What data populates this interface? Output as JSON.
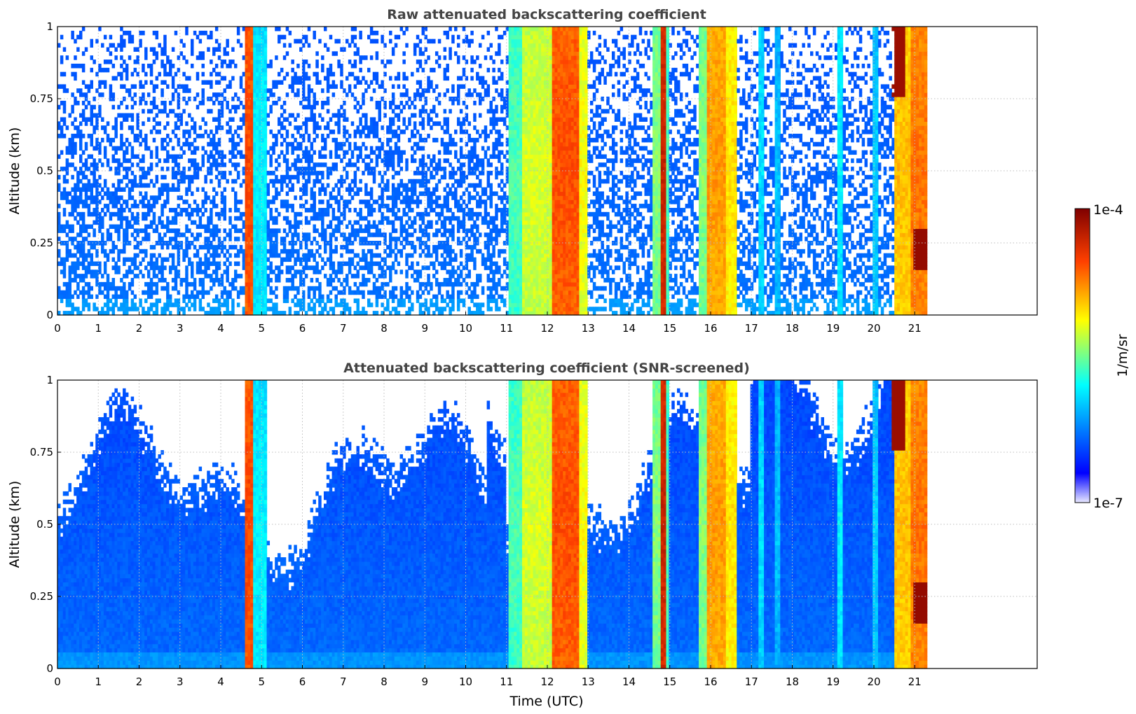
{
  "chart_data": [
    {
      "type": "heatmap",
      "title": "Raw attenuated backscattering coefficient",
      "xlabel": "",
      "ylabel": "Altitude (km)",
      "xlim": [
        0,
        24
      ],
      "ylim": [
        0,
        1
      ],
      "x_ticks": [
        "0",
        "1",
        "2",
        "3",
        "4",
        "5",
        "6",
        "7",
        "8",
        "9",
        "10",
        "11",
        "12",
        "13",
        "14",
        "15",
        "16",
        "17",
        "18",
        "19",
        "20",
        "21"
      ],
      "y_ticks": [
        "0",
        "0.25",
        "0.5",
        "0.75",
        "1"
      ],
      "data_end_time": 21.3,
      "grid": true,
      "screened": false
    },
    {
      "type": "heatmap",
      "title": "Attenuated backscattering coefficient (SNR-screened)",
      "xlabel": "Time (UTC)",
      "ylabel": "Altitude (km)",
      "xlim": [
        0,
        24
      ],
      "ylim": [
        0,
        1
      ],
      "x_ticks": [
        "0",
        "1",
        "2",
        "3",
        "4",
        "5",
        "6",
        "7",
        "8",
        "9",
        "10",
        "11",
        "12",
        "13",
        "14",
        "15",
        "16",
        "17",
        "18",
        "19",
        "20",
        "21"
      ],
      "y_ticks": [
        "0",
        "0.25",
        "0.5",
        "0.75",
        "1"
      ],
      "data_end_time": 21.3,
      "grid": true,
      "screened": true
    }
  ],
  "colorbar": {
    "label": "1/m/sr",
    "min_label": "1e-7",
    "max_label": "1e-4",
    "colormap": [
      "#e8e8ff",
      "#0000ff",
      "#00ffff",
      "#ffff00",
      "#ff4000",
      "#7f0000"
    ]
  },
  "events": [
    {
      "start": 4.62,
      "end": 4.82,
      "level": 0.85
    },
    {
      "start": 4.82,
      "end": 5.15,
      "level": 0.42
    },
    {
      "start": 11.05,
      "end": 11.4,
      "level": 0.5
    },
    {
      "start": 11.4,
      "end": 12.1,
      "level": 0.62
    },
    {
      "start": 12.1,
      "end": 12.75,
      "level": 0.84
    },
    {
      "start": 12.75,
      "end": 12.95,
      "level": 0.65
    },
    {
      "start": 14.55,
      "end": 14.78,
      "level": 0.55
    },
    {
      "start": 14.78,
      "end": 14.9,
      "level": 0.93
    },
    {
      "start": 14.9,
      "end": 15.0,
      "level": 0.5
    },
    {
      "start": 15.7,
      "end": 15.9,
      "level": 0.55
    },
    {
      "start": 15.9,
      "end": 16.35,
      "level": 0.76
    },
    {
      "start": 16.35,
      "end": 16.65,
      "level": 0.68
    },
    {
      "start": 17.2,
      "end": 17.3,
      "level": 0.4
    },
    {
      "start": 17.6,
      "end": 17.7,
      "level": 0.36
    },
    {
      "start": 19.1,
      "end": 19.25,
      "level": 0.42
    },
    {
      "start": 20.0,
      "end": 20.1,
      "level": 0.38
    },
    {
      "start": 20.5,
      "end": 20.9,
      "level": 0.72
    },
    {
      "start": 20.9,
      "end": 21.3,
      "level": 0.8
    }
  ]
}
